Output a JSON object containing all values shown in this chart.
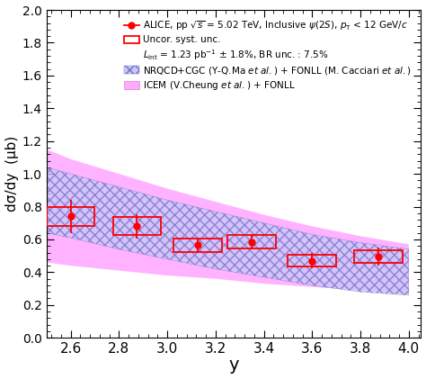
{
  "title": "",
  "xlabel": "y",
  "ylabel": "dσ/dy  (μb)",
  "xlim": [
    2.5,
    4.05
  ],
  "ylim": [
    0,
    2.0
  ],
  "yticks": [
    0,
    0.2,
    0.4,
    0.6,
    0.8,
    1.0,
    1.2,
    1.4,
    1.6,
    1.8,
    2.0
  ],
  "xticks": [
    2.6,
    2.8,
    3.0,
    3.2,
    3.4,
    3.6,
    3.8,
    4.0
  ],
  "data_points": {
    "y": [
      2.6,
      2.875,
      3.125,
      3.35,
      3.6,
      3.875
    ],
    "cross": [
      0.74,
      0.68,
      0.565,
      0.585,
      0.47,
      0.495
    ],
    "stat_err": [
      0.1,
      0.075,
      0.04,
      0.045,
      0.045,
      0.055
    ],
    "syst_err_half_width": [
      0.1,
      0.1,
      0.1,
      0.1,
      0.1,
      0.1
    ],
    "syst_err_half_height": [
      0.06,
      0.055,
      0.04,
      0.04,
      0.035,
      0.038
    ]
  },
  "nrqcd_band": {
    "y": [
      2.5,
      2.6,
      2.8,
      3.0,
      3.2,
      3.4,
      3.6,
      3.8,
      4.0
    ],
    "low": [
      0.64,
      0.61,
      0.54,
      0.48,
      0.42,
      0.37,
      0.32,
      0.28,
      0.26
    ],
    "high": [
      1.04,
      1.0,
      0.92,
      0.84,
      0.77,
      0.7,
      0.63,
      0.58,
      0.54
    ]
  },
  "icem_band": {
    "y": [
      2.5,
      2.6,
      2.8,
      3.0,
      3.2,
      3.4,
      3.6,
      3.8,
      4.0
    ],
    "low": [
      0.46,
      0.44,
      0.41,
      0.38,
      0.36,
      0.33,
      0.31,
      0.29,
      0.27
    ],
    "high": [
      1.15,
      1.09,
      1.0,
      0.91,
      0.83,
      0.75,
      0.68,
      0.62,
      0.57
    ]
  },
  "data_color": "#ff0000",
  "nrqcd_facecolor": "#c8c8ff",
  "nrqcd_edgecolor": "#7070bb",
  "icem_facecolor": "#ffaaff",
  "icem_edgecolor": "#cc88cc",
  "legend1_text": "ALICE, pp $\\sqrt{s}$ = 5.02 TeV, Inclusive $\\psi(2S)$, $p_{\\rm T}$ < 12 GeV/$c$",
  "legend2_text": "Uncor. syst. unc.",
  "legend3_text": "$L_{\\rm int}$ = 1.23 pb$^{-1}$ ± 1.8%, BR unc. : 7.5%",
  "legend4_text": "NRQCD+CGC (Y-Q.Ma $\\it{et\\ al.}$) + FONLL (M. Cacciari $\\it{et\\ al.}$)",
  "legend5_text": "ICEM (V.Cheung $\\it{et\\ al.}$) + FONLL"
}
